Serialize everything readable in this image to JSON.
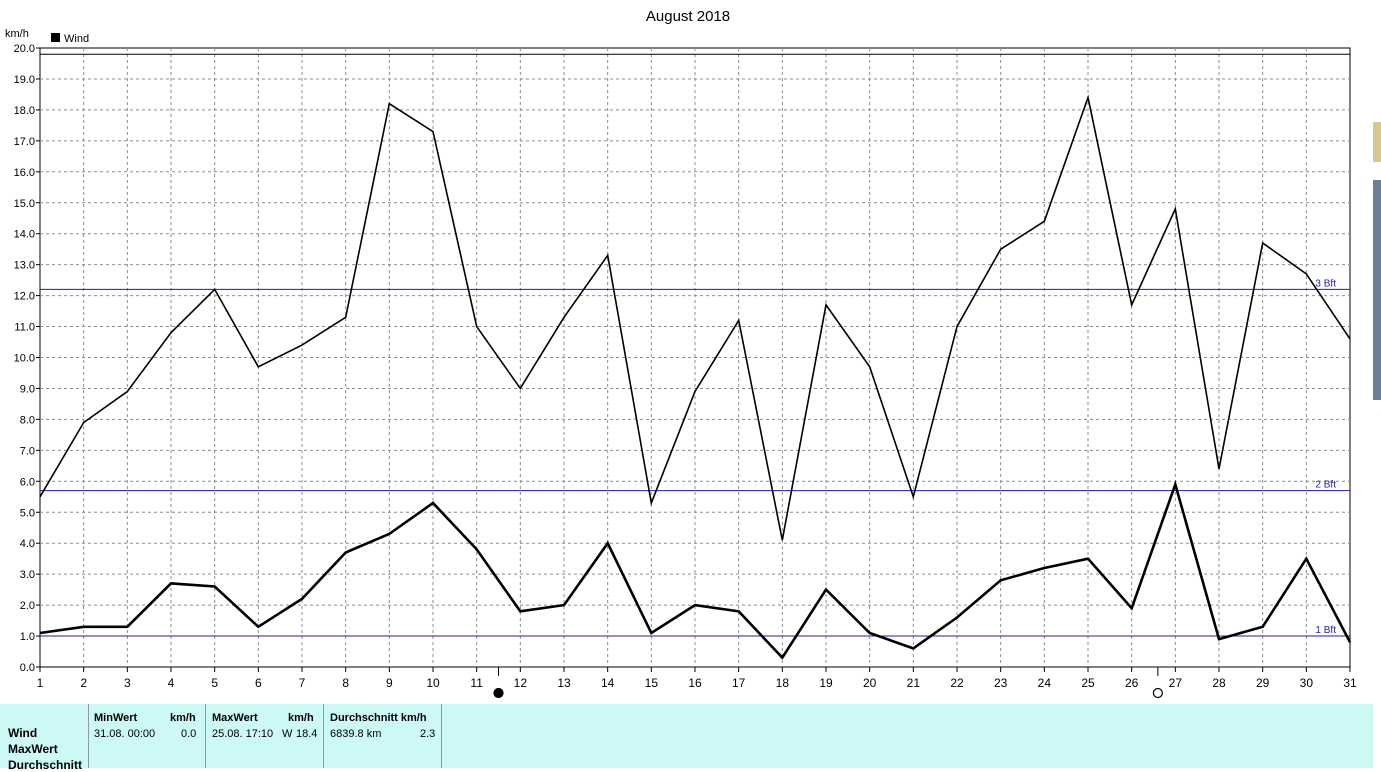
{
  "chart_data": {
    "type": "line",
    "title": "August 2018",
    "ylabel": "km/h",
    "xlabel": "",
    "ylim": [
      0,
      20
    ],
    "y_ticks": [
      "0.0",
      "1.0",
      "2.0",
      "3.0",
      "4.0",
      "5.0",
      "6.0",
      "7.0",
      "8.0",
      "9.0",
      "10.0",
      "11.0",
      "12.0",
      "13.0",
      "14.0",
      "15.0",
      "16.0",
      "17.0",
      "18.0",
      "19.0",
      "20.0"
    ],
    "x": [
      1,
      2,
      3,
      4,
      5,
      6,
      7,
      8,
      9,
      10,
      11,
      12,
      13,
      14,
      15,
      16,
      17,
      18,
      19,
      20,
      21,
      22,
      23,
      24,
      25,
      26,
      27,
      28,
      29,
      30,
      31
    ],
    "grid": true,
    "legend": {
      "position": "top-left",
      "entries": [
        "Wind"
      ]
    },
    "series": [
      {
        "name": "MaxWert",
        "style": "thin",
        "values": [
          5.5,
          7.9,
          8.9,
          10.8,
          12.2,
          9.7,
          10.4,
          11.3,
          18.2,
          17.3,
          11.0,
          9.0,
          11.3,
          13.3,
          5.3,
          8.9,
          11.2,
          4.1,
          11.7,
          9.7,
          5.5,
          11.0,
          13.5,
          14.4,
          18.4,
          11.7,
          14.8,
          6.4,
          13.7,
          12.7,
          10.6
        ]
      },
      {
        "name": "Wind",
        "style": "thick",
        "values": [
          1.1,
          1.3,
          1.3,
          2.7,
          2.6,
          1.3,
          2.2,
          3.7,
          4.3,
          5.3,
          3.8,
          1.8,
          2.0,
          4.0,
          1.1,
          2.0,
          1.8,
          0.3,
          2.5,
          1.1,
          0.6,
          1.6,
          2.8,
          3.2,
          3.5,
          1.9,
          5.9,
          0.9,
          1.3,
          3.5,
          0.8
        ]
      }
    ],
    "reference_lines": [
      {
        "label": "1 Bft",
        "value": 1.0
      },
      {
        "label": "2 Bft",
        "value": 5.7
      },
      {
        "label": "3 Bft",
        "value": 12.2
      }
    ],
    "top_line_value": 19.8,
    "moon_phases": [
      {
        "type": "new",
        "day": 11.5
      },
      {
        "type": "full",
        "day": 26.6
      }
    ],
    "colors": {
      "reference_line": "#1f1fa8",
      "series": "#000000",
      "grid": "#8c8c8c",
      "panel": "#ccf8f5"
    }
  },
  "panel": {
    "row_labels": [
      "Wind",
      "MaxWert",
      "Durchschnitt"
    ],
    "min": {
      "header": "MinWert",
      "unit": "km/h",
      "date": "31.08.  00:00",
      "value": "0.0"
    },
    "max": {
      "header": "MaxWert",
      "unit": "km/h",
      "date": "25.08.  17:10",
      "dir": "W",
      "value": "18.4"
    },
    "avg": {
      "header": "Durchschnitt km/h",
      "distance": "6839.8 km",
      "value": "2.3"
    }
  }
}
